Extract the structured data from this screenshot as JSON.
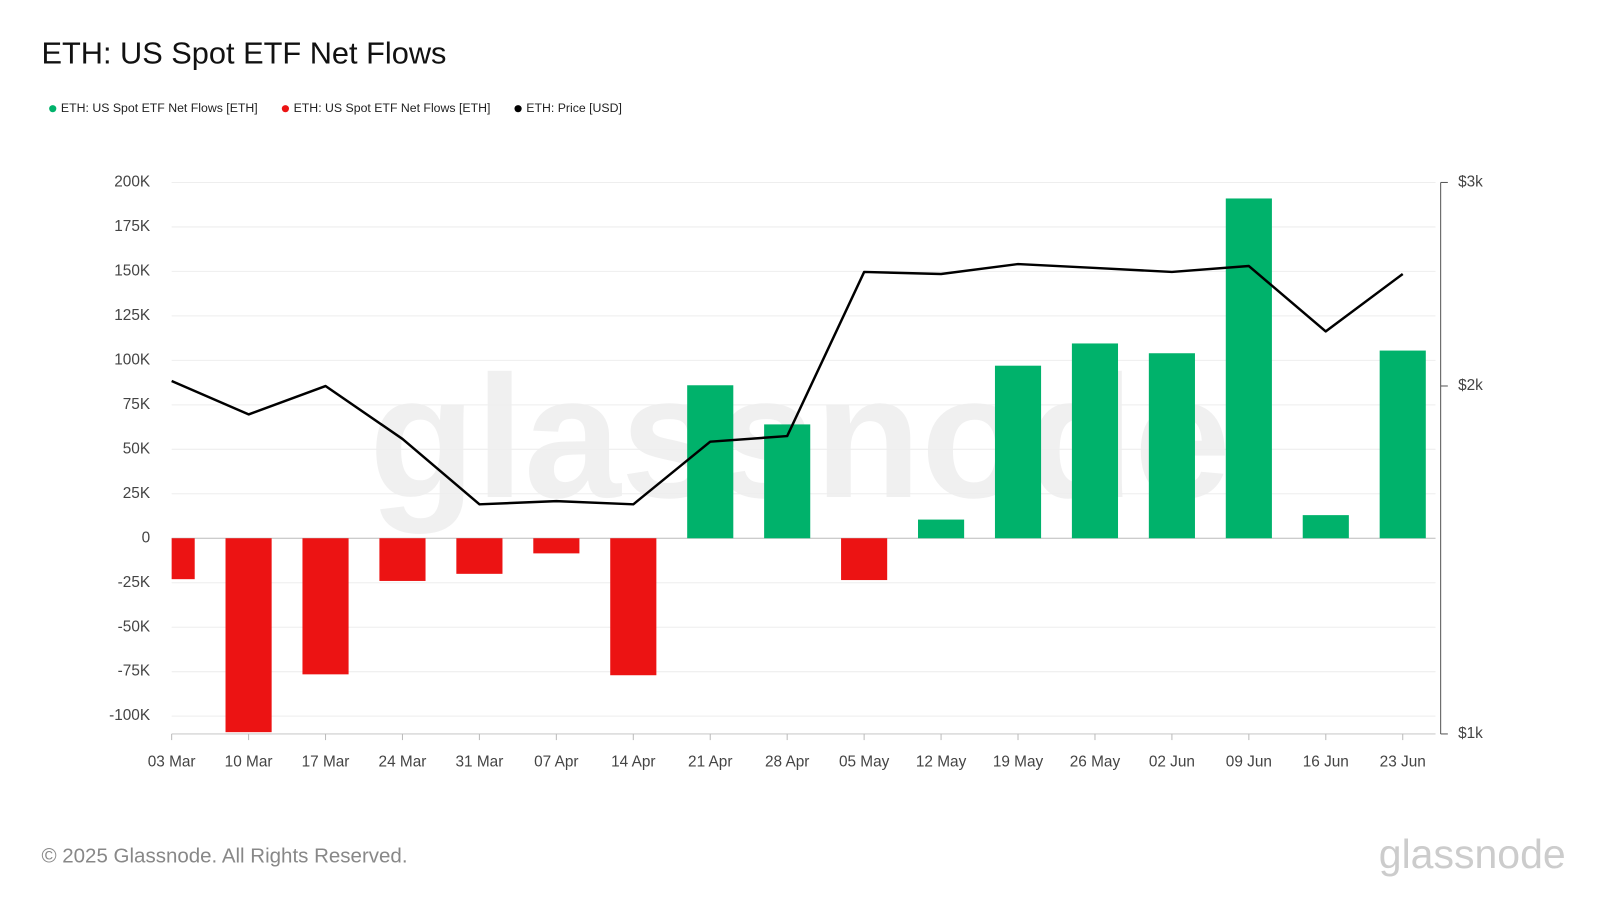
{
  "chart_data": {
    "type": "bar",
    "title": "ETH: US Spot ETF Net Flows",
    "categories": [
      "03 Mar",
      "10 Mar",
      "17 Mar",
      "24 Mar",
      "31 Mar",
      "07 Apr",
      "14 Apr",
      "21 Apr",
      "28 Apr",
      "05 May",
      "12 May",
      "19 May",
      "26 May",
      "02 Jun",
      "09 Jun",
      "16 Jun",
      "23 Jun"
    ],
    "series": [
      {
        "name": "ETH: US Spot ETF Net Flows [ETH]",
        "color": "#00b26b",
        "type": "bar",
        "values": [
          null,
          null,
          null,
          null,
          null,
          null,
          null,
          86000,
          64000,
          null,
          10500,
          97000,
          109500,
          104000,
          191000,
          13000,
          105500
        ]
      },
      {
        "name": "ETH: US Spot ETF Net Flows [ETH]",
        "color": "#ec1313",
        "type": "bar",
        "values": [
          -23000,
          -109000,
          -76500,
          -24000,
          -20000,
          -8500,
          -77000,
          null,
          null,
          -23500,
          null,
          null,
          null,
          null,
          null,
          null,
          null
        ]
      },
      {
        "name": "ETH: Price [USD]",
        "color": "#000000",
        "type": "line",
        "axis": "y2",
        "values": [
          2020,
          1890,
          2000,
          1800,
          1580,
          1590,
          1580,
          1790,
          1810,
          2510,
          2500,
          2550,
          2530,
          2510,
          2540,
          2230,
          2500
        ]
      }
    ],
    "ylim": [
      -110000,
      200000
    ],
    "yticks": [
      {
        "value": -100000,
        "label": "-100K"
      },
      {
        "value": -75000,
        "label": "-75K"
      },
      {
        "value": -50000,
        "label": "-50K"
      },
      {
        "value": -25000,
        "label": "-25K"
      },
      0,
      {
        "value": 25000,
        "label": "25K"
      },
      {
        "value": 50000,
        "label": "50K"
      },
      {
        "value": 75000,
        "label": "75K"
      },
      {
        "value": 100000,
        "label": "100K"
      },
      {
        "value": 125000,
        "label": "125K"
      },
      {
        "value": 150000,
        "label": "150K"
      },
      {
        "value": 175000,
        "label": "175K"
      },
      {
        "value": 200000,
        "label": "200K"
      }
    ],
    "y2lim": [
      1000,
      3000
    ],
    "y2scale": "log",
    "y2ticks": [
      {
        "value": 1000,
        "label": "$1k"
      },
      {
        "value": 2000,
        "label": "$2k"
      },
      {
        "value": 3000,
        "label": "$3k"
      }
    ],
    "grid": true,
    "legend": "top-left",
    "watermark": "glassnode",
    "footer": "© 2025 Glassnode. All Rights Reserved.",
    "logo": "glassnode"
  }
}
